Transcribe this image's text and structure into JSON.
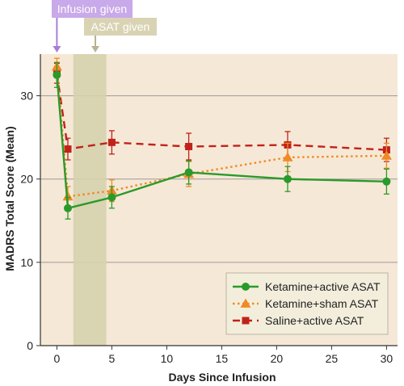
{
  "chart_data": {
    "type": "line",
    "title": "",
    "xlabel": "Days Since Infusion",
    "ylabel": "MADRS Total Score (Mean)",
    "xlim": [
      -1.5,
      31
    ],
    "ylim": [
      0,
      35
    ],
    "x_ticks": [
      0,
      5,
      10,
      15,
      20,
      25,
      30
    ],
    "y_ticks": [
      0,
      10,
      20,
      30
    ],
    "grid": "horizontal",
    "legend_position": "bottom-right",
    "shaded_region": {
      "x0": 1.5,
      "x1": 4.5
    },
    "annotations": [
      {
        "id": "infusion",
        "text": "Infusion given",
        "x": 0,
        "color": "#c8a9e9",
        "arrow_color": "#a57fd6"
      },
      {
        "id": "asat",
        "text": "ASAT given",
        "x": 3.5,
        "color": "#d9d3b4",
        "arrow_color": "#b9b394"
      }
    ],
    "colors": {
      "plot_background": "#f6e8d6",
      "shaded_band": "#d6d2ad",
      "grid": "#9a9a9a",
      "legend_background": "#f3eedc"
    },
    "series": [
      {
        "name": "Ketamine+active ASAT",
        "color": "#2a9a2a",
        "marker": "circle",
        "dash": "solid",
        "x": [
          0,
          1,
          5,
          12,
          21,
          30
        ],
        "y": [
          32.5,
          16.5,
          17.8,
          20.8,
          20.0,
          19.7
        ],
        "err": [
          1.5,
          1.3,
          1.3,
          1.4,
          1.5,
          1.5
        ]
      },
      {
        "name": "Ketamine+sham ASAT",
        "color": "#f08a24",
        "marker": "triangle",
        "dash": "dotted",
        "x": [
          0,
          1,
          5,
          12,
          21,
          30
        ],
        "y": [
          33.5,
          17.9,
          18.6,
          20.6,
          22.6,
          22.8
        ],
        "err": [
          1.0,
          1.2,
          1.3,
          1.5,
          1.7,
          1.5
        ]
      },
      {
        "name": "Saline+active ASAT",
        "color": "#c0221a",
        "marker": "square",
        "dash": "dashed",
        "x": [
          0,
          1,
          5,
          12,
          21,
          30
        ],
        "y": [
          32.7,
          23.6,
          24.4,
          23.9,
          24.1,
          23.5
        ],
        "err": [
          1.2,
          1.3,
          1.4,
          1.6,
          1.6,
          1.4
        ]
      }
    ]
  }
}
